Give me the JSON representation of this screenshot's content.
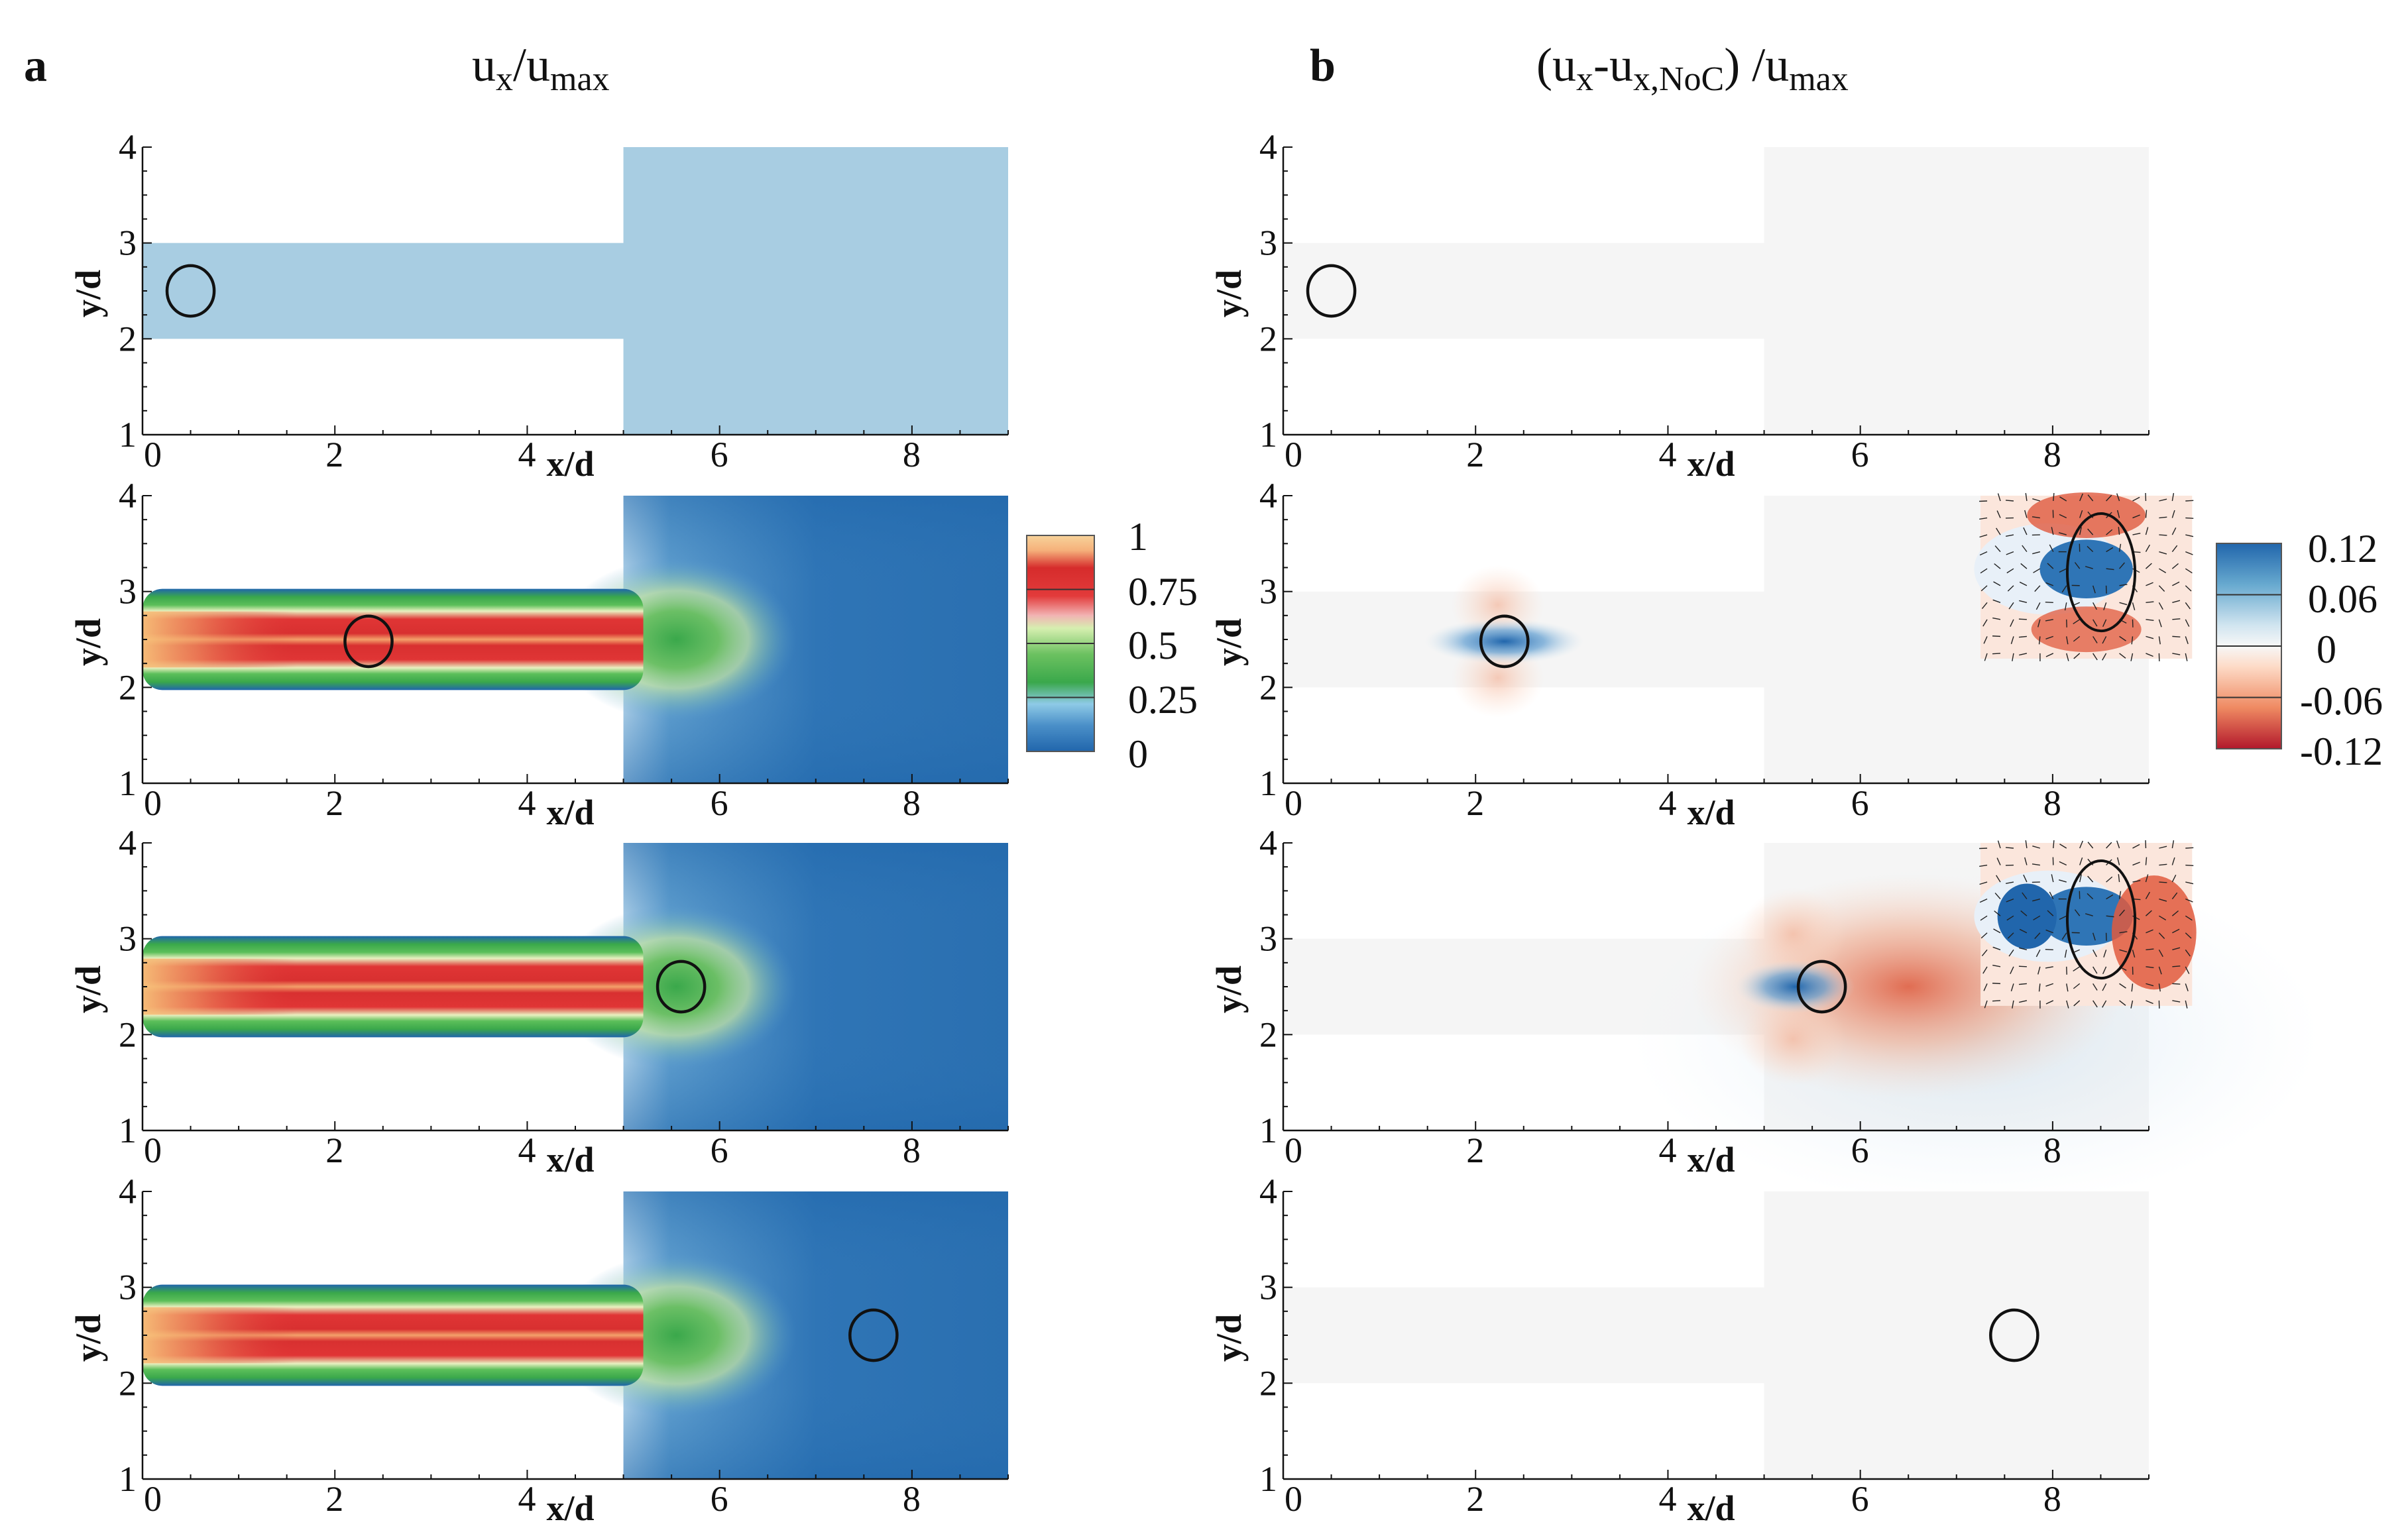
{
  "panels": [
    {
      "letter": "a",
      "title_main": "u",
      "title_sub1": "x",
      "title_mid": "/u",
      "title_sub2": "max",
      "title_end": "",
      "colorbar": {
        "ticks": [
          "1",
          "0.75",
          "0.5",
          "0.25",
          "0"
        ],
        "tick_values": [
          1,
          0.75,
          0.5,
          0.25,
          0
        ],
        "colors": [
          "#2166ac",
          "#4a8fc8",
          "#8ecae6",
          "#3aa84b",
          "#6cc160",
          "#d6efb0",
          "#f2b3b3",
          "#e23a3a",
          "#d62c2c",
          "#f5b07a",
          "#f7d39a"
        ],
        "color_stops": [
          0,
          0.12,
          0.22,
          0.32,
          0.45,
          0.57,
          0.63,
          0.72,
          0.85,
          0.93,
          1.0
        ],
        "range": [
          0,
          1
        ]
      }
    },
    {
      "letter": "b",
      "title_main": "(u",
      "title_sub1": "x",
      "title_mid": "-u",
      "title_sub2": "x,NoC",
      "title_end": ") /u",
      "title_sub3": "max",
      "colorbar": {
        "ticks": [
          "0.12",
          "0.06",
          "0",
          "-0.06",
          "-0.12"
        ],
        "tick_values": [
          0.12,
          0.06,
          0,
          -0.06,
          -0.12
        ],
        "colors": [
          "#b2182b",
          "#ef8a62",
          "#fddbc7",
          "#f7f7f7",
          "#d1e5f0",
          "#67a9cf",
          "#2166ac"
        ],
        "color_stops": [
          0,
          0.2,
          0.4,
          0.5,
          0.6,
          0.8,
          1.0
        ],
        "range": [
          -0.12,
          0.12
        ]
      }
    }
  ],
  "chart_data": [
    {
      "type": "heatmap",
      "panel": "a",
      "title": "ux/umax",
      "xlabel": "x/d",
      "ylabel": "y/d",
      "xticks": [
        0,
        2,
        4,
        6,
        8
      ],
      "yticks": [
        1,
        2,
        3,
        4
      ],
      "xlim": [
        0,
        9
      ],
      "ylim": [
        1,
        4
      ],
      "geometry": {
        "channel_y": [
          2,
          3
        ],
        "channel_x_end": 5,
        "chamber_x": [
          5,
          9
        ],
        "chamber_y": [
          1,
          4
        ]
      },
      "rows": [
        {
          "field": "uniform_low",
          "cell_x": 0.5,
          "cell_y": 2.5,
          "cell_r": 0.25
        },
        {
          "field": "jet",
          "cell_x": 2.35,
          "cell_y": 2.48,
          "cell_r": 0.25
        },
        {
          "field": "jet",
          "cell_x": 5.6,
          "cell_y": 2.5,
          "cell_r": 0.25
        },
        {
          "field": "jet",
          "cell_x": 7.6,
          "cell_y": 2.5,
          "cell_r": 0.25
        }
      ]
    },
    {
      "type": "heatmap",
      "panel": "b",
      "title": "(ux-ux,NoC) /umax",
      "xlabel": "x/d",
      "ylabel": "y/d",
      "xticks": [
        0,
        2,
        4,
        6,
        8
      ],
      "yticks": [
        1,
        2,
        3,
        4
      ],
      "xlim": [
        0,
        9
      ],
      "ylim": [
        1,
        4
      ],
      "geometry": {
        "channel_y": [
          2,
          3
        ],
        "channel_x_end": 5,
        "chamber_x": [
          5,
          9
        ],
        "chamber_y": [
          1,
          4
        ]
      },
      "rows": [
        {
          "field": "neutral",
          "cell_x": 0.5,
          "cell_y": 2.5,
          "cell_r": 0.25,
          "inset": false
        },
        {
          "field": "dipole",
          "cell_x": 2.3,
          "cell_y": 2.48,
          "cell_r": 0.25,
          "inset": true
        },
        {
          "field": "dipole",
          "cell_x": 5.6,
          "cell_y": 2.5,
          "cell_r": 0.25,
          "inset": true
        },
        {
          "field": "neutral",
          "cell_x": 7.6,
          "cell_y": 2.5,
          "cell_r": 0.25,
          "inset": false
        }
      ]
    }
  ]
}
